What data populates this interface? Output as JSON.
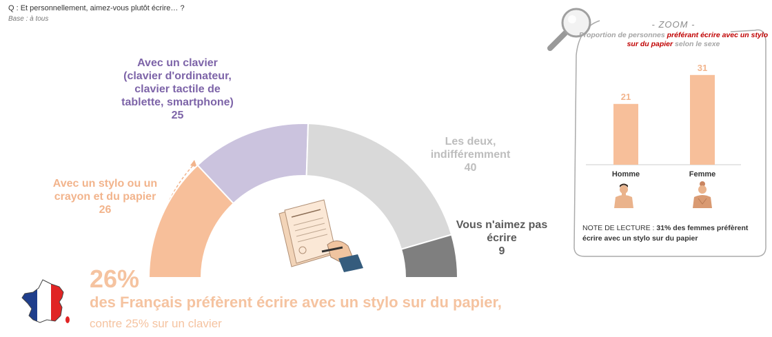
{
  "header": {
    "question": "Q : Et personnellement, aimez-vous plutôt écrire… ?",
    "base": "Base : à tous"
  },
  "chart_data": [
    {
      "type": "pie",
      "variant": "half-donut",
      "categories": [
        "Avec un stylo ou un crayon et du papier",
        "Avec un clavier (clavier d'ordinateur, clavier tactile de tablette, smartphone)",
        "Les deux, indifféremment",
        "Vous n'aimez pas écrire"
      ],
      "values": [
        26,
        25,
        40,
        9
      ],
      "colors": [
        "#f7bf9a",
        "#cbc3de",
        "#d9d9d9",
        "#7f7f7f"
      ]
    },
    {
      "type": "bar",
      "title": "Proportion de personnes préférant écrire avec un stylo sur du papier selon le sexe",
      "categories": [
        "Homme",
        "Femme"
      ],
      "values": [
        21,
        31
      ],
      "ylim": [
        0,
        35
      ],
      "colors": [
        "#f7bf9a"
      ]
    }
  ],
  "labels": {
    "stylo": {
      "text": "Avec un stylo ou un crayon et du papier",
      "value": "26"
    },
    "clavier": {
      "text": "Avec un clavier (clavier d'ordinateur, clavier tactile de tablette, smartphone)",
      "value": "25"
    },
    "deux": {
      "text": "Les deux, indifféremment",
      "value": "40"
    },
    "pas": {
      "text": "Vous n'aimez pas écrire",
      "value": "9"
    }
  },
  "headline": {
    "number": "26%",
    "text": "des Français préfèrent écrire avec un stylo sur du papier,",
    "sub": "contre 25% sur un clavier"
  },
  "zoom": {
    "title": "- ZOOM -",
    "subtitle_pre": "Proportion de personnes ",
    "subtitle_highlight": "préférant écrire avec un stylo sur du papier",
    "subtitle_post": " selon le sexe",
    "note_pre": "NOTE DE LECTURE : ",
    "note_bold": "31% des femmes préfèrent écrire avec un stylo sur du papier"
  },
  "icons": [
    "magnifier-icon",
    "france-flag-map-icon",
    "hand-writing-icon",
    "man-icon",
    "woman-icon"
  ]
}
